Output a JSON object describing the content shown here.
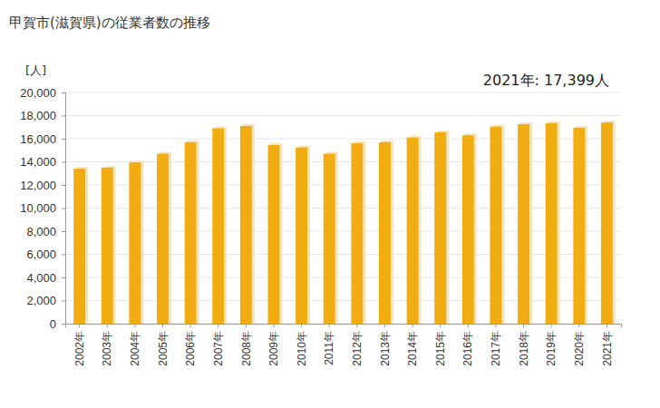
{
  "chart_data": {
    "type": "bar",
    "title": "甲賀市(滋賀県)の従業者数の推移",
    "y_label": "[人]",
    "annotation": "2021年: 17,399人",
    "categories": [
      "2002年",
      "2003年",
      "2004年",
      "2005年",
      "2006年",
      "2007年",
      "2008年",
      "2009年",
      "2010年",
      "2011年",
      "2012年",
      "2013年",
      "2014年",
      "2015年",
      "2016年",
      "2017年",
      "2018年",
      "2019年",
      "2020年",
      "2021年"
    ],
    "values": [
      13400,
      13500,
      13950,
      14700,
      15700,
      16900,
      17100,
      15450,
      15250,
      14700,
      15600,
      15700,
      16100,
      16550,
      16300,
      17050,
      17250,
      17350,
      16950,
      17399
    ],
    "color": "#f0ac10",
    "ylim": [
      0,
      20000
    ],
    "yticks": [
      0,
      {
        "value": 2000,
        "label": "2,000"
      },
      {
        "value": 4000,
        "label": "4,000"
      },
      {
        "value": 6000,
        "label": "6,000"
      },
      {
        "value": 8000,
        "label": "8,000"
      },
      {
        "value": 10000,
        "label": "10,000"
      },
      {
        "value": 12000,
        "label": "12,000"
      },
      {
        "value": 14000,
        "label": "14,000"
      },
      {
        "value": 16000,
        "label": "16,000"
      },
      {
        "value": 18000,
        "label": "18,000"
      },
      {
        "value": 20000,
        "label": "20,000"
      }
    ],
    "grid": true
  }
}
